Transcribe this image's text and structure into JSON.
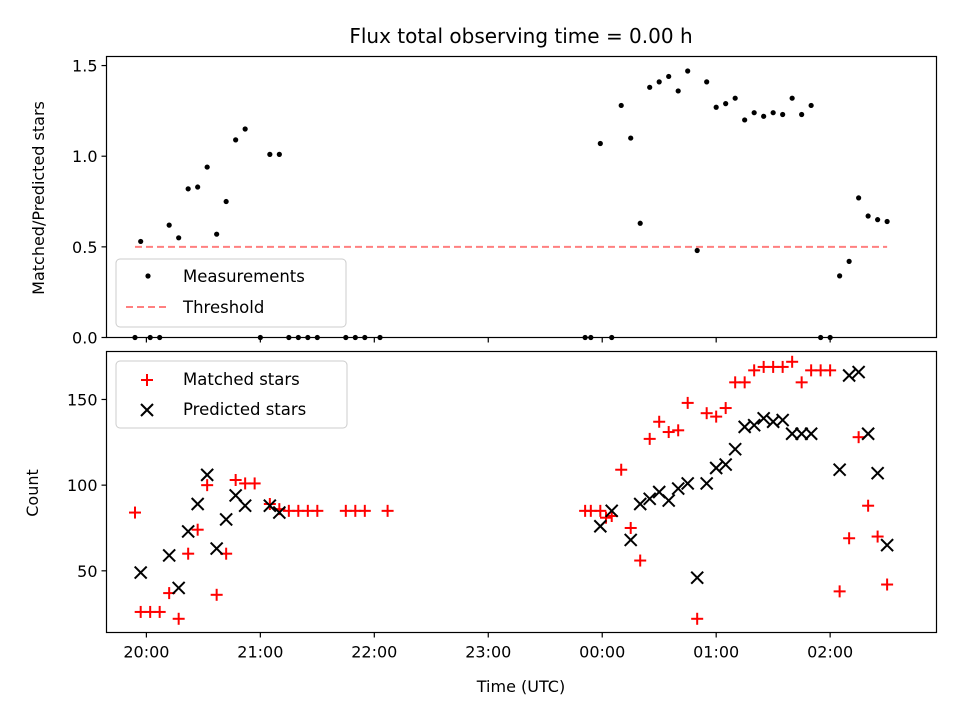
{
  "figure": {
    "title": "Flux total observing time = 0.00 h"
  },
  "chart_data": [
    {
      "type": "scatter",
      "panel": "top",
      "ylabel": "Matched/Predicted stars",
      "ylim": [
        0,
        1.55
      ],
      "yticks": [
        0.0,
        0.5,
        1.0,
        1.5
      ],
      "ytick_labels": [
        "0.0",
        "0.5",
        "1.0",
        "1.5"
      ],
      "xlim": [
        "19:39",
        "02:56"
      ],
      "grid": false,
      "legend_position": "lower-left",
      "series": [
        {
          "name": "Measurements",
          "kind": "dots",
          "color": "#000000",
          "points": [
            [
              "19:54",
              0.0
            ],
            [
              "19:57",
              0.53
            ],
            [
              "20:02",
              0.0
            ],
            [
              "20:07",
              0.0
            ],
            [
              "20:12",
              0.62
            ],
            [
              "20:17",
              0.55
            ],
            [
              "20:22",
              0.82
            ],
            [
              "20:27",
              0.83
            ],
            [
              "20:32",
              0.94
            ],
            [
              "20:37",
              0.57
            ],
            [
              "20:42",
              0.75
            ],
            [
              "20:47",
              1.09
            ],
            [
              "20:52",
              1.15
            ],
            [
              "21:00",
              0.0
            ],
            [
              "21:05",
              1.01
            ],
            [
              "21:10",
              1.01
            ],
            [
              "21:15",
              0.0
            ],
            [
              "21:20",
              0.0
            ],
            [
              "21:25",
              0.0
            ],
            [
              "21:30",
              0.0
            ],
            [
              "21:45",
              0.0
            ],
            [
              "21:50",
              0.0
            ],
            [
              "21:55",
              0.0
            ],
            [
              "22:03",
              0.0
            ],
            [
              "23:51",
              0.0
            ],
            [
              "23:54",
              0.0
            ],
            [
              "23:59",
              1.07
            ],
            [
              "00:05",
              0.0
            ],
            [
              "00:10",
              1.28
            ],
            [
              "00:15",
              1.1
            ],
            [
              "00:20",
              0.63
            ],
            [
              "00:25",
              1.38
            ],
            [
              "00:30",
              1.41
            ],
            [
              "00:35",
              1.44
            ],
            [
              "00:40",
              1.36
            ],
            [
              "00:45",
              1.47
            ],
            [
              "00:50",
              0.48
            ],
            [
              "00:55",
              1.41
            ],
            [
              "01:00",
              1.27
            ],
            [
              "01:05",
              1.29
            ],
            [
              "01:10",
              1.32
            ],
            [
              "01:15",
              1.2
            ],
            [
              "01:20",
              1.24
            ],
            [
              "01:25",
              1.22
            ],
            [
              "01:30",
              1.24
            ],
            [
              "01:35",
              1.23
            ],
            [
              "01:40",
              1.32
            ],
            [
              "01:45",
              1.23
            ],
            [
              "01:50",
              1.28
            ],
            [
              "01:55",
              0.0
            ],
            [
              "02:00",
              0.0
            ],
            [
              "02:05",
              0.34
            ],
            [
              "02:10",
              0.42
            ],
            [
              "02:15",
              0.77
            ],
            [
              "02:20",
              0.67
            ],
            [
              "02:25",
              0.65
            ],
            [
              "02:30",
              0.64
            ]
          ]
        },
        {
          "name": "Threshold",
          "kind": "dashed-line",
          "color": "#ff8080",
          "points": [
            [
              "19:54",
              0.5
            ],
            [
              "02:30",
              0.5
            ]
          ]
        }
      ]
    },
    {
      "type": "scatter",
      "panel": "bottom",
      "xlabel": "Time (UTC)",
      "ylabel": "Count",
      "ylim": [
        14,
        178
      ],
      "yticks": [
        50,
        100,
        150
      ],
      "ytick_labels": [
        "50",
        "100",
        "150"
      ],
      "xlim": [
        "19:39",
        "02:56"
      ],
      "xticks": [
        "20:00",
        "21:00",
        "22:00",
        "23:00",
        "00:00",
        "01:00",
        "02:00"
      ],
      "xtick_labels": [
        "20:00",
        "21:00",
        "22:00",
        "23:00",
        "00:00",
        "01:00",
        "02:00"
      ],
      "grid": false,
      "legend_position": "upper-left",
      "series": [
        {
          "name": "Matched stars",
          "kind": "plus",
          "color": "#ff0000",
          "points": [
            [
              "19:54",
              84
            ],
            [
              "19:57",
              26
            ],
            [
              "20:02",
              26
            ],
            [
              "20:07",
              26
            ],
            [
              "20:12",
              37
            ],
            [
              "20:17",
              22
            ],
            [
              "20:22",
              60
            ],
            [
              "20:27",
              74
            ],
            [
              "20:32",
              100
            ],
            [
              "20:37",
              36
            ],
            [
              "20:42",
              60
            ],
            [
              "20:47",
              103
            ],
            [
              "20:52",
              101
            ],
            [
              "20:57",
              101
            ],
            [
              "21:05",
              89
            ],
            [
              "21:10",
              86
            ],
            [
              "21:15",
              85
            ],
            [
              "21:20",
              85
            ],
            [
              "21:25",
              85
            ],
            [
              "21:30",
              85
            ],
            [
              "21:45",
              85
            ],
            [
              "21:50",
              85
            ],
            [
              "21:55",
              85
            ],
            [
              "22:07",
              85
            ],
            [
              "23:51",
              85
            ],
            [
              "23:54",
              85
            ],
            [
              "23:59",
              85
            ],
            [
              "00:02",
              81
            ],
            [
              "00:05",
              82
            ],
            [
              "00:10",
              109
            ],
            [
              "00:15",
              75
            ],
            [
              "00:20",
              56
            ],
            [
              "00:25",
              127
            ],
            [
              "00:30",
              137
            ],
            [
              "00:35",
              131
            ],
            [
              "00:40",
              132
            ],
            [
              "00:45",
              148
            ],
            [
              "00:50",
              22
            ],
            [
              "00:55",
              142
            ],
            [
              "01:00",
              140
            ],
            [
              "01:05",
              145
            ],
            [
              "01:10",
              160
            ],
            [
              "01:15",
              160
            ],
            [
              "01:20",
              167
            ],
            [
              "01:25",
              169
            ],
            [
              "01:30",
              169
            ],
            [
              "01:35",
              169
            ],
            [
              "01:40",
              172
            ],
            [
              "01:45",
              160
            ],
            [
              "01:50",
              167
            ],
            [
              "01:55",
              167
            ],
            [
              "02:00",
              167
            ],
            [
              "02:05",
              38
            ],
            [
              "02:10",
              69
            ],
            [
              "02:15",
              128
            ],
            [
              "02:20",
              88
            ],
            [
              "02:25",
              70
            ],
            [
              "02:30",
              42
            ]
          ]
        },
        {
          "name": "Predicted stars",
          "kind": "x",
          "color": "#000000",
          "points": [
            [
              "19:57",
              49
            ],
            [
              "20:12",
              59
            ],
            [
              "20:17",
              40
            ],
            [
              "20:22",
              73
            ],
            [
              "20:27",
              89
            ],
            [
              "20:32",
              106
            ],
            [
              "20:37",
              63
            ],
            [
              "20:42",
              80
            ],
            [
              "20:47",
              94
            ],
            [
              "20:52",
              88
            ],
            [
              "21:05",
              88
            ],
            [
              "21:10",
              84
            ],
            [
              "23:59",
              76
            ],
            [
              "00:05",
              85
            ],
            [
              "00:15",
              68
            ],
            [
              "00:20",
              89
            ],
            [
              "00:25",
              92
            ],
            [
              "00:30",
              96
            ],
            [
              "00:35",
              91
            ],
            [
              "00:40",
              98
            ],
            [
              "00:45",
              101
            ],
            [
              "00:50",
              46
            ],
            [
              "00:55",
              101
            ],
            [
              "01:00",
              110
            ],
            [
              "01:05",
              112
            ],
            [
              "01:10",
              121
            ],
            [
              "01:15",
              134
            ],
            [
              "01:20",
              135
            ],
            [
              "01:25",
              139
            ],
            [
              "01:30",
              137
            ],
            [
              "01:35",
              138
            ],
            [
              "01:40",
              130
            ],
            [
              "01:45",
              130
            ],
            [
              "01:50",
              130
            ],
            [
              "02:05",
              109
            ],
            [
              "02:10",
              164
            ],
            [
              "02:15",
              166
            ],
            [
              "02:20",
              130
            ],
            [
              "02:25",
              107
            ],
            [
              "02:30",
              65
            ]
          ]
        }
      ]
    }
  ]
}
